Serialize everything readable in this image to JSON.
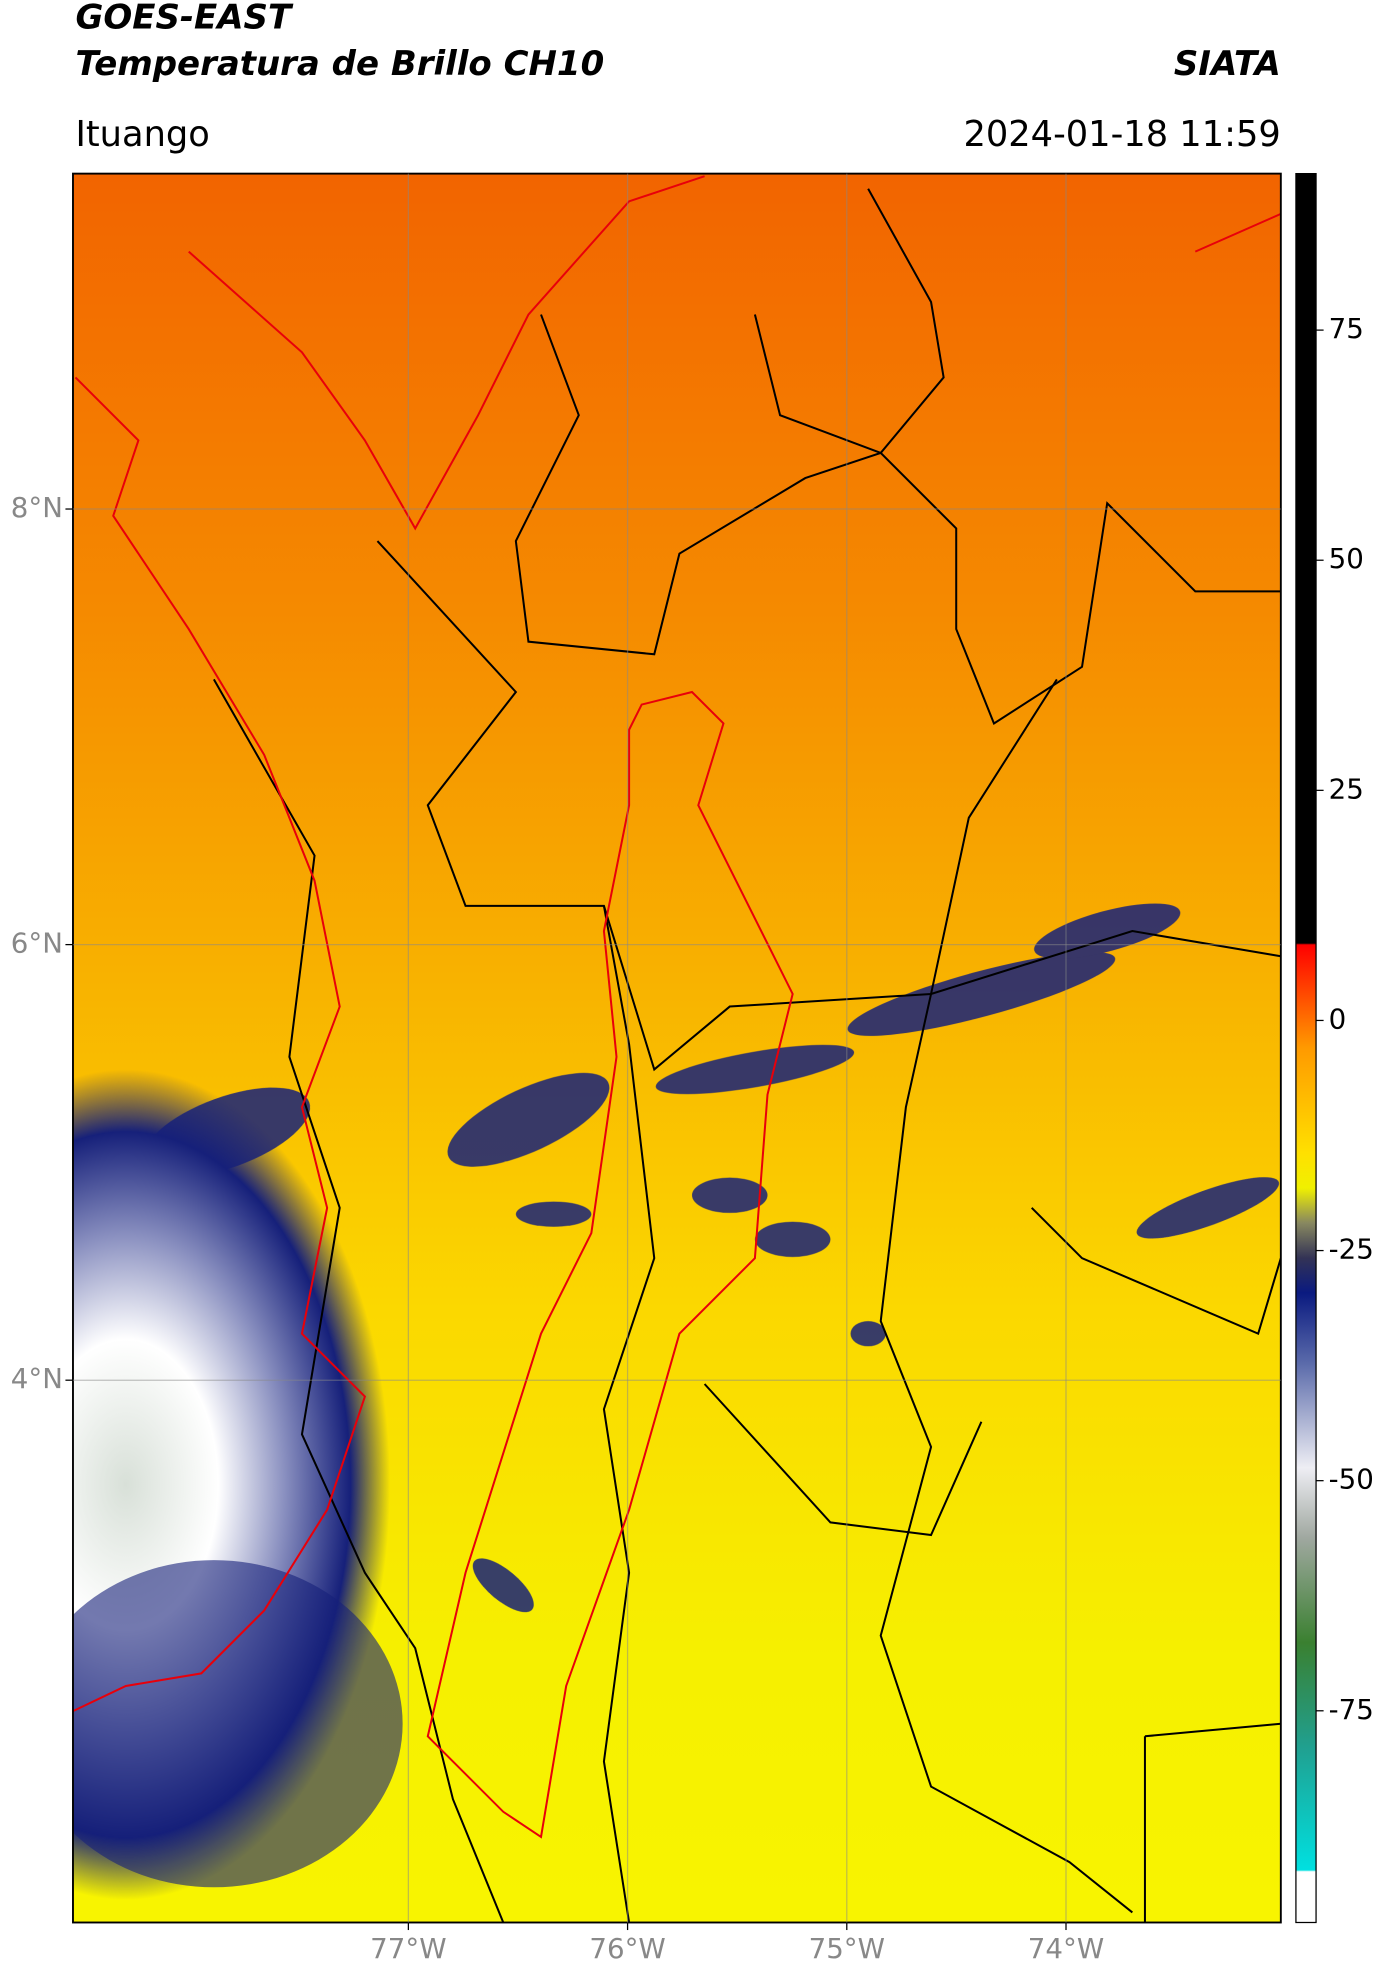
{
  "header": {
    "title": "GOES-EAST",
    "subtitle": "Temperatura de Brillo CH10",
    "source": "SIATA",
    "location": "Ituango",
    "timestamp": "2024-01-18 11:59"
  },
  "map": {
    "xlim": [
      -78.53,
      -73.02
    ],
    "ylim": [
      1.51,
      9.54
    ],
    "grid": true,
    "xticks": [
      {
        "value": -77,
        "label": "77°W"
      },
      {
        "value": -76,
        "label": "76°W"
      },
      {
        "value": -75,
        "label": "75°W"
      },
      {
        "value": -74,
        "label": "74°W"
      }
    ],
    "yticks": [
      {
        "value": 4,
        "label": "4°N"
      },
      {
        "value": 6,
        "label": "6°N"
      },
      {
        "value": 8,
        "label": "8°N"
      }
    ]
  },
  "colorbar": {
    "lim": [
      -98,
      92
    ],
    "ticks": [
      -75,
      -50,
      -25,
      0,
      25,
      50,
      75
    ]
  }
}
